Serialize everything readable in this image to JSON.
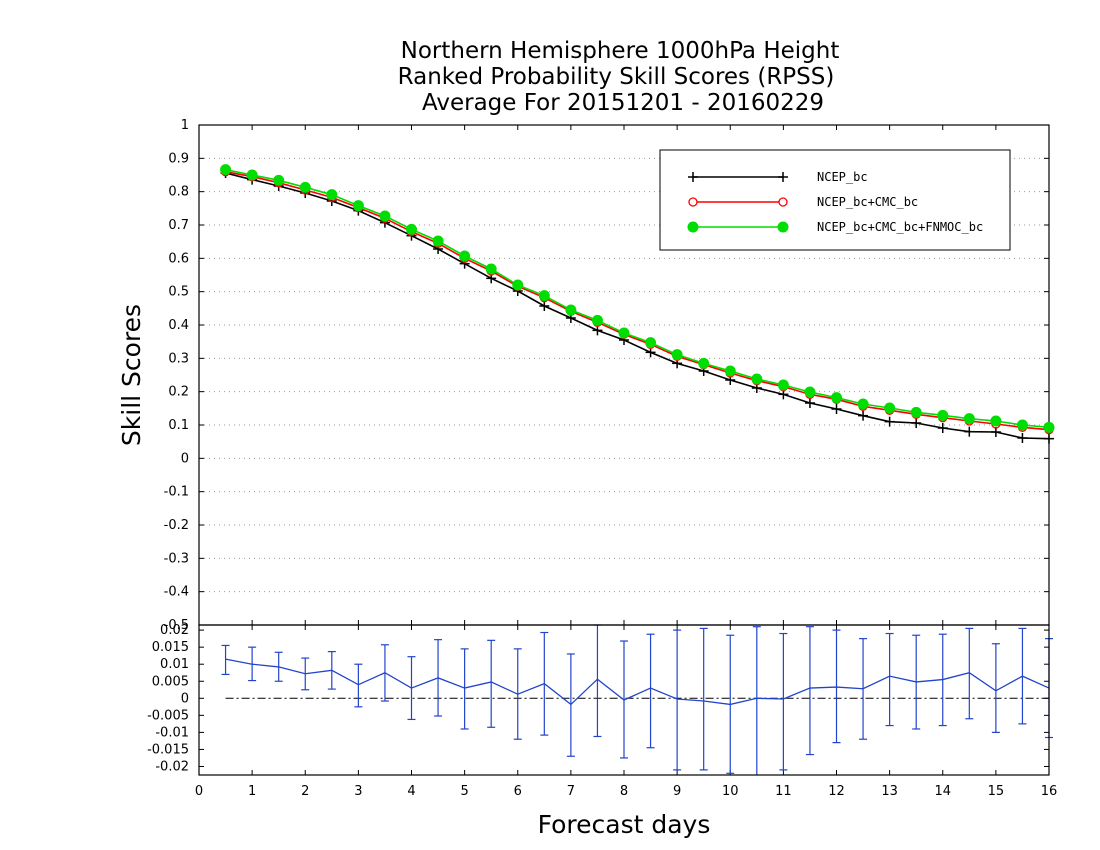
{
  "chart_data": [
    {
      "type": "line",
      "title": [
        "Northern Hemisphere 1000hPa Height",
        "Ranked Probability Skill Scores (RPSS)",
        "Average For 20151201 - 20160229"
      ],
      "ylabel": "Skill Scores",
      "xlabel": "Forecast days",
      "xlim": [
        0,
        16
      ],
      "ylim": [
        -0.5,
        1
      ],
      "yticks": [
        "1",
        "0.9",
        "0.8",
        "0.7",
        "0.6",
        "0.5",
        "0.4",
        "0.3",
        "0.2",
        "0.1",
        "0",
        "-0.1",
        "-0.2",
        "-0.3",
        "-0.4",
        "-0.5"
      ],
      "grid": "dotted horizontal",
      "legend_position": "top-right",
      "x": [
        0.5,
        1,
        1.5,
        2,
        2.5,
        3,
        3.5,
        4,
        4.5,
        5,
        5.5,
        6,
        6.5,
        7,
        7.5,
        8,
        8.5,
        9,
        9.5,
        10,
        10.5,
        11,
        11.5,
        12,
        12.5,
        13,
        13.5,
        14,
        14.5,
        15,
        15.5,
        16
      ],
      "series": [
        {
          "name": "NCEP_bc",
          "color": "#000000",
          "marker": "plus",
          "values": [
            0.856,
            0.836,
            0.817,
            0.796,
            0.772,
            0.743,
            0.707,
            0.668,
            0.628,
            0.584,
            0.54,
            0.502,
            0.457,
            0.421,
            0.384,
            0.355,
            0.318,
            0.285,
            0.262,
            0.235,
            0.211,
            0.192,
            0.166,
            0.148,
            0.128,
            0.11,
            0.106,
            0.091,
            0.08,
            0.079,
            0.061,
            0.059
          ]
        },
        {
          "name": "NCEP_bc+CMC_bc",
          "color": "#ff0000",
          "marker": "open-circle",
          "values": [
            0.86,
            0.845,
            0.827,
            0.805,
            0.783,
            0.752,
            0.72,
            0.68,
            0.645,
            0.6,
            0.562,
            0.516,
            0.482,
            0.441,
            0.408,
            0.372,
            0.342,
            0.306,
            0.281,
            0.256,
            0.233,
            0.215,
            0.192,
            0.177,
            0.156,
            0.144,
            0.132,
            0.122,
            0.112,
            0.103,
            0.093,
            0.086
          ]
        },
        {
          "name": "NCEP_bc+CMC_bc+FNMOC_bc",
          "color": "#00dd00",
          "marker": "filled-circle",
          "values": [
            0.866,
            0.85,
            0.834,
            0.813,
            0.791,
            0.758,
            0.727,
            0.687,
            0.652,
            0.607,
            0.568,
            0.52,
            0.488,
            0.445,
            0.414,
            0.376,
            0.347,
            0.311,
            0.285,
            0.262,
            0.238,
            0.22,
            0.199,
            0.182,
            0.163,
            0.151,
            0.138,
            0.129,
            0.119,
            0.112,
            0.1,
            0.093
          ]
        }
      ]
    },
    {
      "type": "line",
      "subtype": "difference with error bars",
      "xlabel": "Forecast days",
      "xlim": [
        0,
        16
      ],
      "ylim": [
        -0.0225,
        0.0215
      ],
      "xticks": [
        "0",
        "1",
        "2",
        "3",
        "4",
        "5",
        "6",
        "7",
        "8",
        "9",
        "10",
        "11",
        "12",
        "13",
        "14",
        "15",
        "16"
      ],
      "yticks": [
        "0.02",
        "0.015",
        "0.01",
        "0.005",
        "0",
        "-0.005",
        "-0.01",
        "-0.015",
        "-0.02"
      ],
      "zero_line": "dash-dot",
      "color": "#2244cc",
      "x": [
        0.5,
        1,
        1.5,
        2,
        2.5,
        3,
        3.5,
        4,
        4.5,
        5,
        5.5,
        6,
        6.5,
        7,
        7.5,
        8,
        8.5,
        9,
        9.5,
        10,
        10.5,
        11,
        11.5,
        12,
        12.5,
        13,
        13.5,
        14,
        14.5,
        15,
        15.5,
        16
      ],
      "values": [
        0.0115,
        0.01,
        0.0092,
        0.0072,
        0.0082,
        0.004,
        0.0075,
        0.003,
        0.006,
        0.003,
        0.0048,
        0.0012,
        0.0043,
        -0.0018,
        0.0056,
        -0.0005,
        0.003,
        -0.0002,
        -0.0008,
        -0.0018,
        0.0,
        -0.0002,
        0.003,
        0.0033,
        0.0028,
        0.0065,
        0.0048,
        0.0055,
        0.0075,
        0.0022,
        0.0065,
        0.003
      ],
      "error_low": [
        0.007,
        0.0052,
        0.005,
        0.0025,
        0.0027,
        -0.0025,
        -0.0008,
        -0.0062,
        -0.0052,
        -0.009,
        -0.0085,
        -0.012,
        -0.0108,
        -0.017,
        -0.0112,
        -0.0175,
        -0.0145,
        -0.021,
        -0.021,
        -0.022,
        -0.023,
        -0.021,
        -0.0165,
        -0.013,
        -0.012,
        -0.008,
        -0.009,
        -0.008,
        -0.006,
        -0.01,
        -0.0075,
        -0.0115
      ],
      "error_high": [
        0.0155,
        0.015,
        0.0135,
        0.0118,
        0.0137,
        0.01,
        0.0157,
        0.0122,
        0.0172,
        0.0145,
        0.017,
        0.0145,
        0.0193,
        0.013,
        0.0215,
        0.0168,
        0.0188,
        0.02,
        0.0205,
        0.0185,
        0.021,
        0.019,
        0.021,
        0.02,
        0.0175,
        0.019,
        0.0185,
        0.0188,
        0.0205,
        0.016,
        0.0205,
        0.0175
      ]
    }
  ]
}
